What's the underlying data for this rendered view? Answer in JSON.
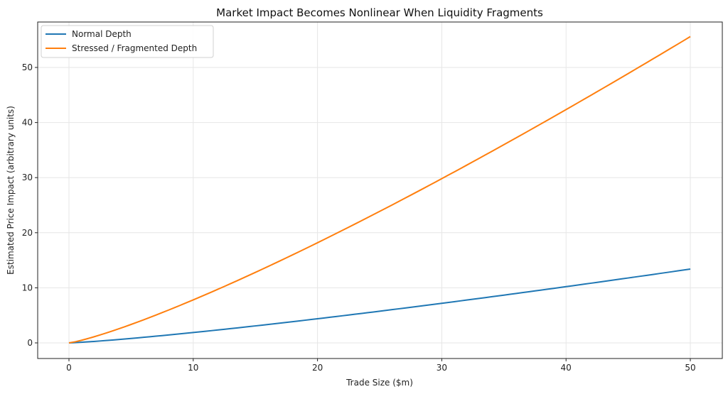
{
  "chart_data": {
    "type": "line",
    "title": "Market Impact Becomes Nonlinear When Liquidity Fragments",
    "xlabel": "Trade Size ($m)",
    "ylabel": "Estimated Price Impact (arbitrary units)",
    "xlim": [
      -2.5,
      52.5
    ],
    "ylim": [
      -2.8,
      58.5
    ],
    "xticks": [
      0,
      10,
      20,
      30,
      40,
      50
    ],
    "yticks": [
      0,
      10,
      20,
      30,
      40,
      50
    ],
    "grid": true,
    "legend_position": "upper left",
    "x": [
      0,
      5,
      10,
      15,
      20,
      25,
      30,
      35,
      40,
      45,
      50
    ],
    "series": [
      {
        "name": "Normal Depth",
        "color": "#1f77b4",
        "values": [
          0,
          0.81,
          1.88,
          3.08,
          4.39,
          5.75,
          7.19,
          8.68,
          10.21,
          11.78,
          13.4
        ]
      },
      {
        "name": "Stressed / Fragmented Depth",
        "color": "#ff7f0e",
        "values": [
          0,
          3.35,
          7.81,
          12.8,
          18.2,
          23.87,
          29.83,
          36.0,
          42.35,
          48.89,
          55.6
        ]
      }
    ]
  }
}
